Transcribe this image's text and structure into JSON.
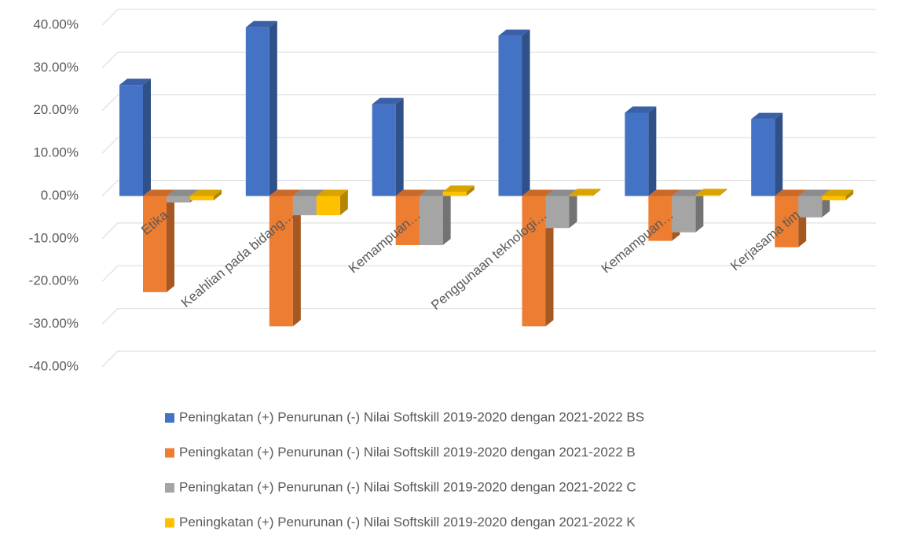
{
  "chart_data": {
    "type": "bar3d",
    "categories": [
      "Etika",
      "Keahlian pada bidang…",
      "Kemampuan…",
      "Penggunaan teknologi…",
      "Kemampuan…",
      "Kerjasama tim"
    ],
    "series": [
      {
        "name": "Peningkatan (+) Penurunan (-) Nilai Softskill 2019-2020 dengan 2021-2022 BS",
        "color": "#4472c4",
        "values": [
          26,
          39.5,
          21.5,
          37.5,
          19.5,
          18
        ]
      },
      {
        "name": "Peningkatan (+) Penurunan (-) Nilai Softskill 2019-2020 dengan 2021-2022 B",
        "color": "#ed7d31",
        "values": [
          -22.5,
          -30.5,
          -11.5,
          -30.5,
          -10.5,
          -12
        ]
      },
      {
        "name": "Peningkatan (+) Penurunan (-) Nilai Softskill 2019-2020 dengan 2021-2022 C",
        "color": "#a5a5a5",
        "values": [
          -1.5,
          -4.5,
          -11.5,
          -7.5,
          -8.5,
          -5
        ]
      },
      {
        "name": "Peningkatan (+) Penurunan (-) Nilai Softskill 2019-2020 dengan 2021-2022 K",
        "color": "#ffc000",
        "values": [
          -1,
          -4.5,
          1,
          0.2,
          0.2,
          -1
        ]
      }
    ],
    "ylim": [
      -40,
      40
    ],
    "yticks": [
      {
        "value": -40,
        "label": "-40.00%"
      },
      {
        "value": -30,
        "label": "-30.00%"
      },
      {
        "value": -20,
        "label": "-20.00%"
      },
      {
        "value": -10,
        "label": "-10.00%"
      },
      {
        "value": 0,
        "label": "0.00%"
      },
      {
        "value": 10,
        "label": "10.00%"
      },
      {
        "value": 20,
        "label": "20.00%"
      },
      {
        "value": 30,
        "label": "30.00%"
      },
      {
        "value": 40,
        "label": "40.00%"
      }
    ],
    "grid": true,
    "legend": "bottom"
  }
}
